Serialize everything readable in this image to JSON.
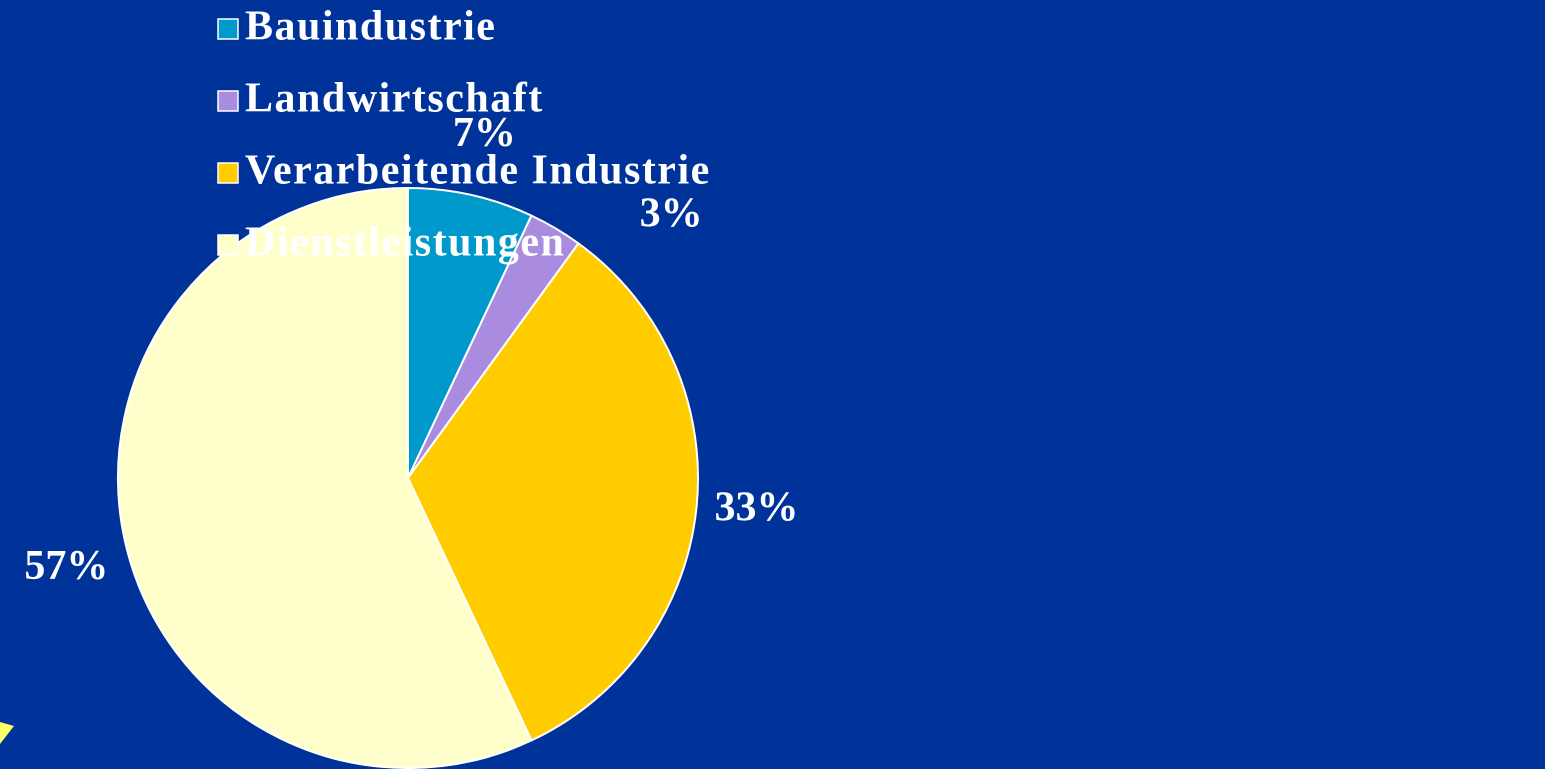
{
  "chart_data": {
    "type": "pie",
    "categories": [
      "Bauindustrie",
      "Landwirtschaft",
      "Verarbeitende Industrie",
      "Dienstleistungen"
    ],
    "values": [
      7,
      3,
      33,
      57
    ],
    "value_labels": [
      "7%",
      "3%",
      "33%",
      "57%"
    ],
    "colors": [
      "#0099cc",
      "#a98bdf",
      "#ffcc00",
      "#ffffcc"
    ],
    "legend": "top-right"
  }
}
